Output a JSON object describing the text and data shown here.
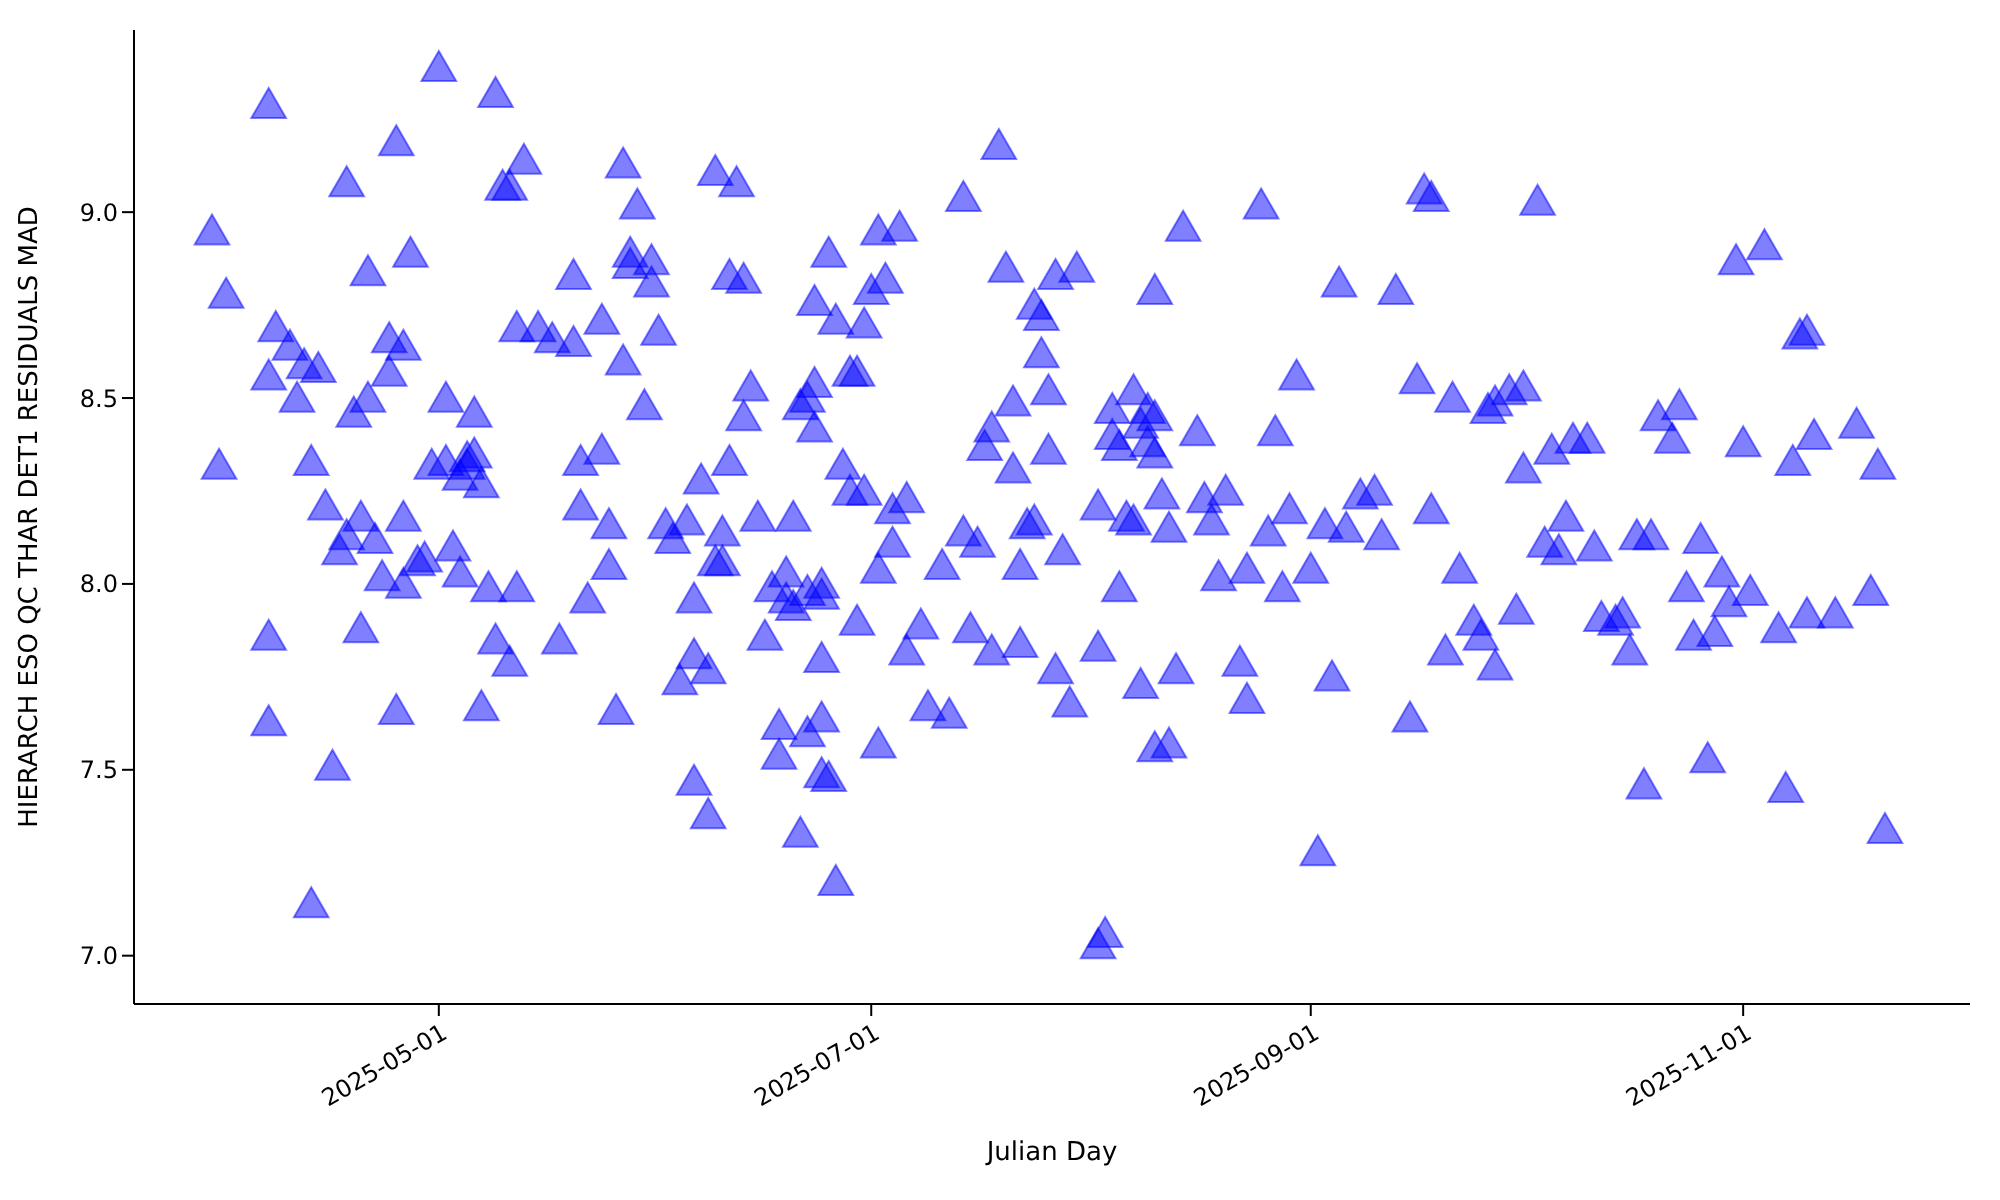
{
  "chart_data": {
    "type": "scatter",
    "xlabel": "Julian Day",
    "ylabel": "HIERARCH ESO QC THAR DET1 RESIDUALS MAD",
    "color": "#0000ff",
    "marker": "triangle",
    "xlim": [
      "2025-03-19",
      "2025-12-03"
    ],
    "ylim": [
      6.87,
      9.49
    ],
    "xticks": [
      "2025-05-01",
      "2025-07-01",
      "2025-09-01",
      "2025-11-01"
    ],
    "yticks": [
      {
        "value": 7,
        "label": "7.0"
      },
      {
        "value": 7.5,
        "label": "7.5"
      },
      {
        "value": 8,
        "label": "8.0"
      },
      {
        "value": 8.5,
        "label": "8.5"
      },
      {
        "value": 9,
        "label": "9.0"
      }
    ],
    "x": [
      "2025-03-30",
      "2025-03-31",
      "2025-04-01",
      "2025-04-07",
      "2025-04-07",
      "2025-04-07",
      "2025-04-07",
      "2025-04-08",
      "2025-04-10",
      "2025-04-11",
      "2025-04-12",
      "2025-04-13",
      "2025-04-13",
      "2025-04-14",
      "2025-04-15",
      "2025-04-16",
      "2025-04-17",
      "2025-04-18",
      "2025-04-18",
      "2025-04-19",
      "2025-04-20",
      "2025-04-20",
      "2025-04-21",
      "2025-04-21",
      "2025-04-22",
      "2025-04-23",
      "2025-04-24",
      "2025-04-24",
      "2025-04-25",
      "2025-04-25",
      "2025-04-26",
      "2025-04-26",
      "2025-04-26",
      "2025-04-27",
      "2025-04-28",
      "2025-04-29",
      "2025-04-30",
      "2025-05-01",
      "2025-05-02",
      "2025-05-02",
      "2025-05-03",
      "2025-05-04",
      "2025-05-04",
      "2025-05-05",
      "2025-05-05",
      "2025-05-06",
      "2025-05-06",
      "2025-05-07",
      "2025-05-07",
      "2025-05-08",
      "2025-05-09",
      "2025-05-09",
      "2025-05-10",
      "2025-05-11",
      "2025-05-11",
      "2025-05-12",
      "2025-05-12",
      "2025-05-13",
      "2025-05-15",
      "2025-05-17",
      "2025-05-18",
      "2025-05-20",
      "2025-05-20",
      "2025-05-21",
      "2025-05-21",
      "2025-05-22",
      "2025-05-24",
      "2025-05-24",
      "2025-05-25",
      "2025-05-25",
      "2025-05-26",
      "2025-05-27",
      "2025-05-27",
      "2025-05-28",
      "2025-05-28",
      "2025-05-29",
      "2025-05-30",
      "2025-05-31",
      "2025-05-31",
      "2025-06-01",
      "2025-06-02",
      "2025-06-03",
      "2025-06-04",
      "2025-06-05",
      "2025-06-06",
      "2025-06-06",
      "2025-06-06",
      "2025-06-07",
      "2025-06-08",
      "2025-06-08",
      "2025-06-09",
      "2025-06-09",
      "2025-06-10",
      "2025-06-10",
      "2025-06-11",
      "2025-06-11",
      "2025-06-12",
      "2025-06-13",
      "2025-06-13",
      "2025-06-14",
      "2025-06-15",
      "2025-06-16",
      "2025-06-17",
      "2025-06-18",
      "2025-06-18",
      "2025-06-19",
      "2025-06-19",
      "2025-06-20",
      "2025-06-20",
      "2025-06-21",
      "2025-06-21",
      "2025-06-22",
      "2025-06-22",
      "2025-06-22",
      "2025-06-23",
      "2025-06-23",
      "2025-06-23",
      "2025-06-24",
      "2025-06-24",
      "2025-06-24",
      "2025-06-24",
      "2025-06-24",
      "2025-06-25",
      "2025-06-25",
      "2025-06-26",
      "2025-06-26",
      "2025-06-27",
      "2025-06-28",
      "2025-06-28",
      "2025-06-29",
      "2025-06-29",
      "2025-06-30",
      "2025-06-30",
      "2025-07-01",
      "2025-07-02",
      "2025-07-02",
      "2025-07-02",
      "2025-07-03",
      "2025-07-04",
      "2025-07-04",
      "2025-07-05",
      "2025-07-06",
      "2025-07-06",
      "2025-07-08",
      "2025-07-09",
      "2025-07-11",
      "2025-07-12",
      "2025-07-14",
      "2025-07-14",
      "2025-07-15",
      "2025-07-16",
      "2025-07-17",
      "2025-07-18",
      "2025-07-18",
      "2025-07-19",
      "2025-07-20",
      "2025-07-21",
      "2025-07-21",
      "2025-07-22",
      "2025-07-22",
      "2025-07-23",
      "2025-07-24",
      "2025-07-24",
      "2025-07-25",
      "2025-07-25",
      "2025-07-26",
      "2025-07-26",
      "2025-07-27",
      "2025-07-27",
      "2025-07-28",
      "2025-07-29",
      "2025-07-30",
      "2025-08-02",
      "2025-08-02",
      "2025-08-02",
      "2025-08-03",
      "2025-08-04",
      "2025-08-04",
      "2025-08-05",
      "2025-08-05",
      "2025-08-06",
      "2025-08-07",
      "2025-08-07",
      "2025-08-08",
      "2025-08-08",
      "2025-08-09",
      "2025-08-09",
      "2025-08-10",
      "2025-08-10",
      "2025-08-10",
      "2025-08-10",
      "2025-08-11",
      "2025-08-12",
      "2025-08-12",
      "2025-08-13",
      "2025-08-14",
      "2025-08-16",
      "2025-08-17",
      "2025-08-18",
      "2025-08-19",
      "2025-08-20",
      "2025-08-22",
      "2025-08-23",
      "2025-08-23",
      "2025-08-25",
      "2025-08-26",
      "2025-08-27",
      "2025-08-28",
      "2025-08-29",
      "2025-08-30",
      "2025-09-01",
      "2025-09-02",
      "2025-09-03",
      "2025-09-04",
      "2025-09-05",
      "2025-09-06",
      "2025-09-08",
      "2025-09-10",
      "2025-09-11",
      "2025-09-13",
      "2025-09-15",
      "2025-09-16",
      "2025-09-17",
      "2025-09-18",
      "2025-09-18",
      "2025-09-20",
      "2025-09-21",
      "2025-09-22",
      "2025-09-24",
      "2025-09-25",
      "2025-09-26",
      "2025-09-27",
      "2025-09-27",
      "2025-09-29",
      "2025-09-30",
      "2025-10-01",
      "2025-10-01",
      "2025-10-03",
      "2025-10-04",
      "2025-10-05",
      "2025-10-06",
      "2025-10-07",
      "2025-10-08",
      "2025-10-10",
      "2025-10-11",
      "2025-10-12",
      "2025-10-14",
      "2025-10-15",
      "2025-10-16",
      "2025-10-17",
      "2025-10-18",
      "2025-10-19",
      "2025-10-20",
      "2025-10-22",
      "2025-10-23",
      "2025-10-24",
      "2025-10-25",
      "2025-10-26",
      "2025-10-27",
      "2025-10-28",
      "2025-10-29",
      "2025-10-30",
      "2025-10-31",
      "2025-11-01",
      "2025-11-02",
      "2025-11-04",
      "2025-11-06",
      "2025-11-07",
      "2025-11-08",
      "2025-11-09",
      "2025-11-10",
      "2025-11-10",
      "2025-11-11",
      "2025-11-14",
      "2025-11-17",
      "2025-11-19",
      "2025-11-20",
      "2025-11-21"
    ],
    "values": [
      8.94,
      8.31,
      8.77,
      9.28,
      8.55,
      7.85,
      7.62,
      8.68,
      8.63,
      8.49,
      8.58,
      8.32,
      7.13,
      8.57,
      8.2,
      7.5,
      8.08,
      8.12,
      9.07,
      8.45,
      8.17,
      7.87,
      8.49,
      8.83,
      8.11,
      8.01,
      8.65,
      8.56,
      9.18,
      7.65,
      8.17,
      7.99,
      8.63,
      8.88,
      8.05,
      8.06,
      8.31,
      9.38,
      8.32,
      8.49,
      8.09,
      8.28,
      8.02,
      8.31,
      8.33,
      8.45,
      8.34,
      7.66,
      8.26,
      7.98,
      7.84,
      9.31,
      9.06,
      9.06,
      7.78,
      7.98,
      8.68,
      9.13,
      8.68,
      8.65,
      7.84,
      8.82,
      8.64,
      8.32,
      8.2,
      7.95,
      8.35,
      8.7,
      8.04,
      8.15,
      7.65,
      9.12,
      8.59,
      8.88,
      8.85,
      9.01,
      8.47,
      8.86,
      8.8,
      8.67,
      8.15,
      8.11,
      7.73,
      8.16,
      7.8,
      7.46,
      7.95,
      8.27,
      7.37,
      7.76,
      9.1,
      8.05,
      8.05,
      8.13,
      8.32,
      8.82,
      9.07,
      8.81,
      8.44,
      8.52,
      8.17,
      7.85,
      7.98,
      7.61,
      7.53,
      7.95,
      8.02,
      7.93,
      8.17,
      8.47,
      7.32,
      7.97,
      7.59,
      8.49,
      8.53,
      8.75,
      8.41,
      7.79,
      7.96,
      7.63,
      7.99,
      7.48,
      7.47,
      8.88,
      8.7,
      7.19,
      8.31,
      8.24,
      8.56,
      8.56,
      7.89,
      8.69,
      8.24,
      8.78,
      7.56,
      8.03,
      8.94,
      8.81,
      8.1,
      8.19,
      8.95,
      7.81,
      8.22,
      7.88,
      7.66,
      8.04,
      7.64,
      9.03,
      8.13,
      7.87,
      8.1,
      8.36,
      7.81,
      8.41,
      9.17,
      8.84,
      8.48,
      8.3,
      8.04,
      7.83,
      8.15,
      8.16,
      8.74,
      8.61,
      8.71,
      8.51,
      8.35,
      8.82,
      7.76,
      8.08,
      7.67,
      8.84,
      8.2,
      7.82,
      7.02,
      7.05,
      8.46,
      8.39,
      8.36,
      7.98,
      8.17,
      8.16,
      8.51,
      7.72,
      8.42,
      8.46,
      8.37,
      8.34,
      8.44,
      8.78,
      7.55,
      8.23,
      7.56,
      8.14,
      7.76,
      8.95,
      8.4,
      8.22,
      8.16,
      8.01,
      8.24,
      7.78,
      7.68,
      8.03,
      9.01,
      8.13,
      8.4,
      7.98,
      8.19,
      8.55,
      8.03,
      7.27,
      8.15,
      7.74,
      8.8,
      8.14,
      8.23,
      8.24,
      8.12,
      8.78,
      7.63,
      8.54,
      9.05,
      9.03,
      8.19,
      7.81,
      8.49,
      8.03,
      7.89,
      7.85,
      8.46,
      8.48,
      7.77,
      8.51,
      7.92,
      8.3,
      8.52,
      9.02,
      8.1,
      8.35,
      8.08,
      8.17,
      8.38,
      8.38,
      8.09,
      7.9,
      7.89,
      7.91,
      7.81,
      8.12,
      7.45,
      8.12,
      8.44,
      8.38,
      8.47,
      7.98,
      7.85,
      8.11,
      7.52,
      7.86,
      8.02,
      7.94,
      8.86,
      8.37,
      7.97,
      8.9,
      7.87,
      7.44,
      8.32,
      8.66,
      8.67,
      7.91,
      8.39,
      7.91,
      8.42,
      7.97,
      8.31,
      7.33
    ]
  }
}
